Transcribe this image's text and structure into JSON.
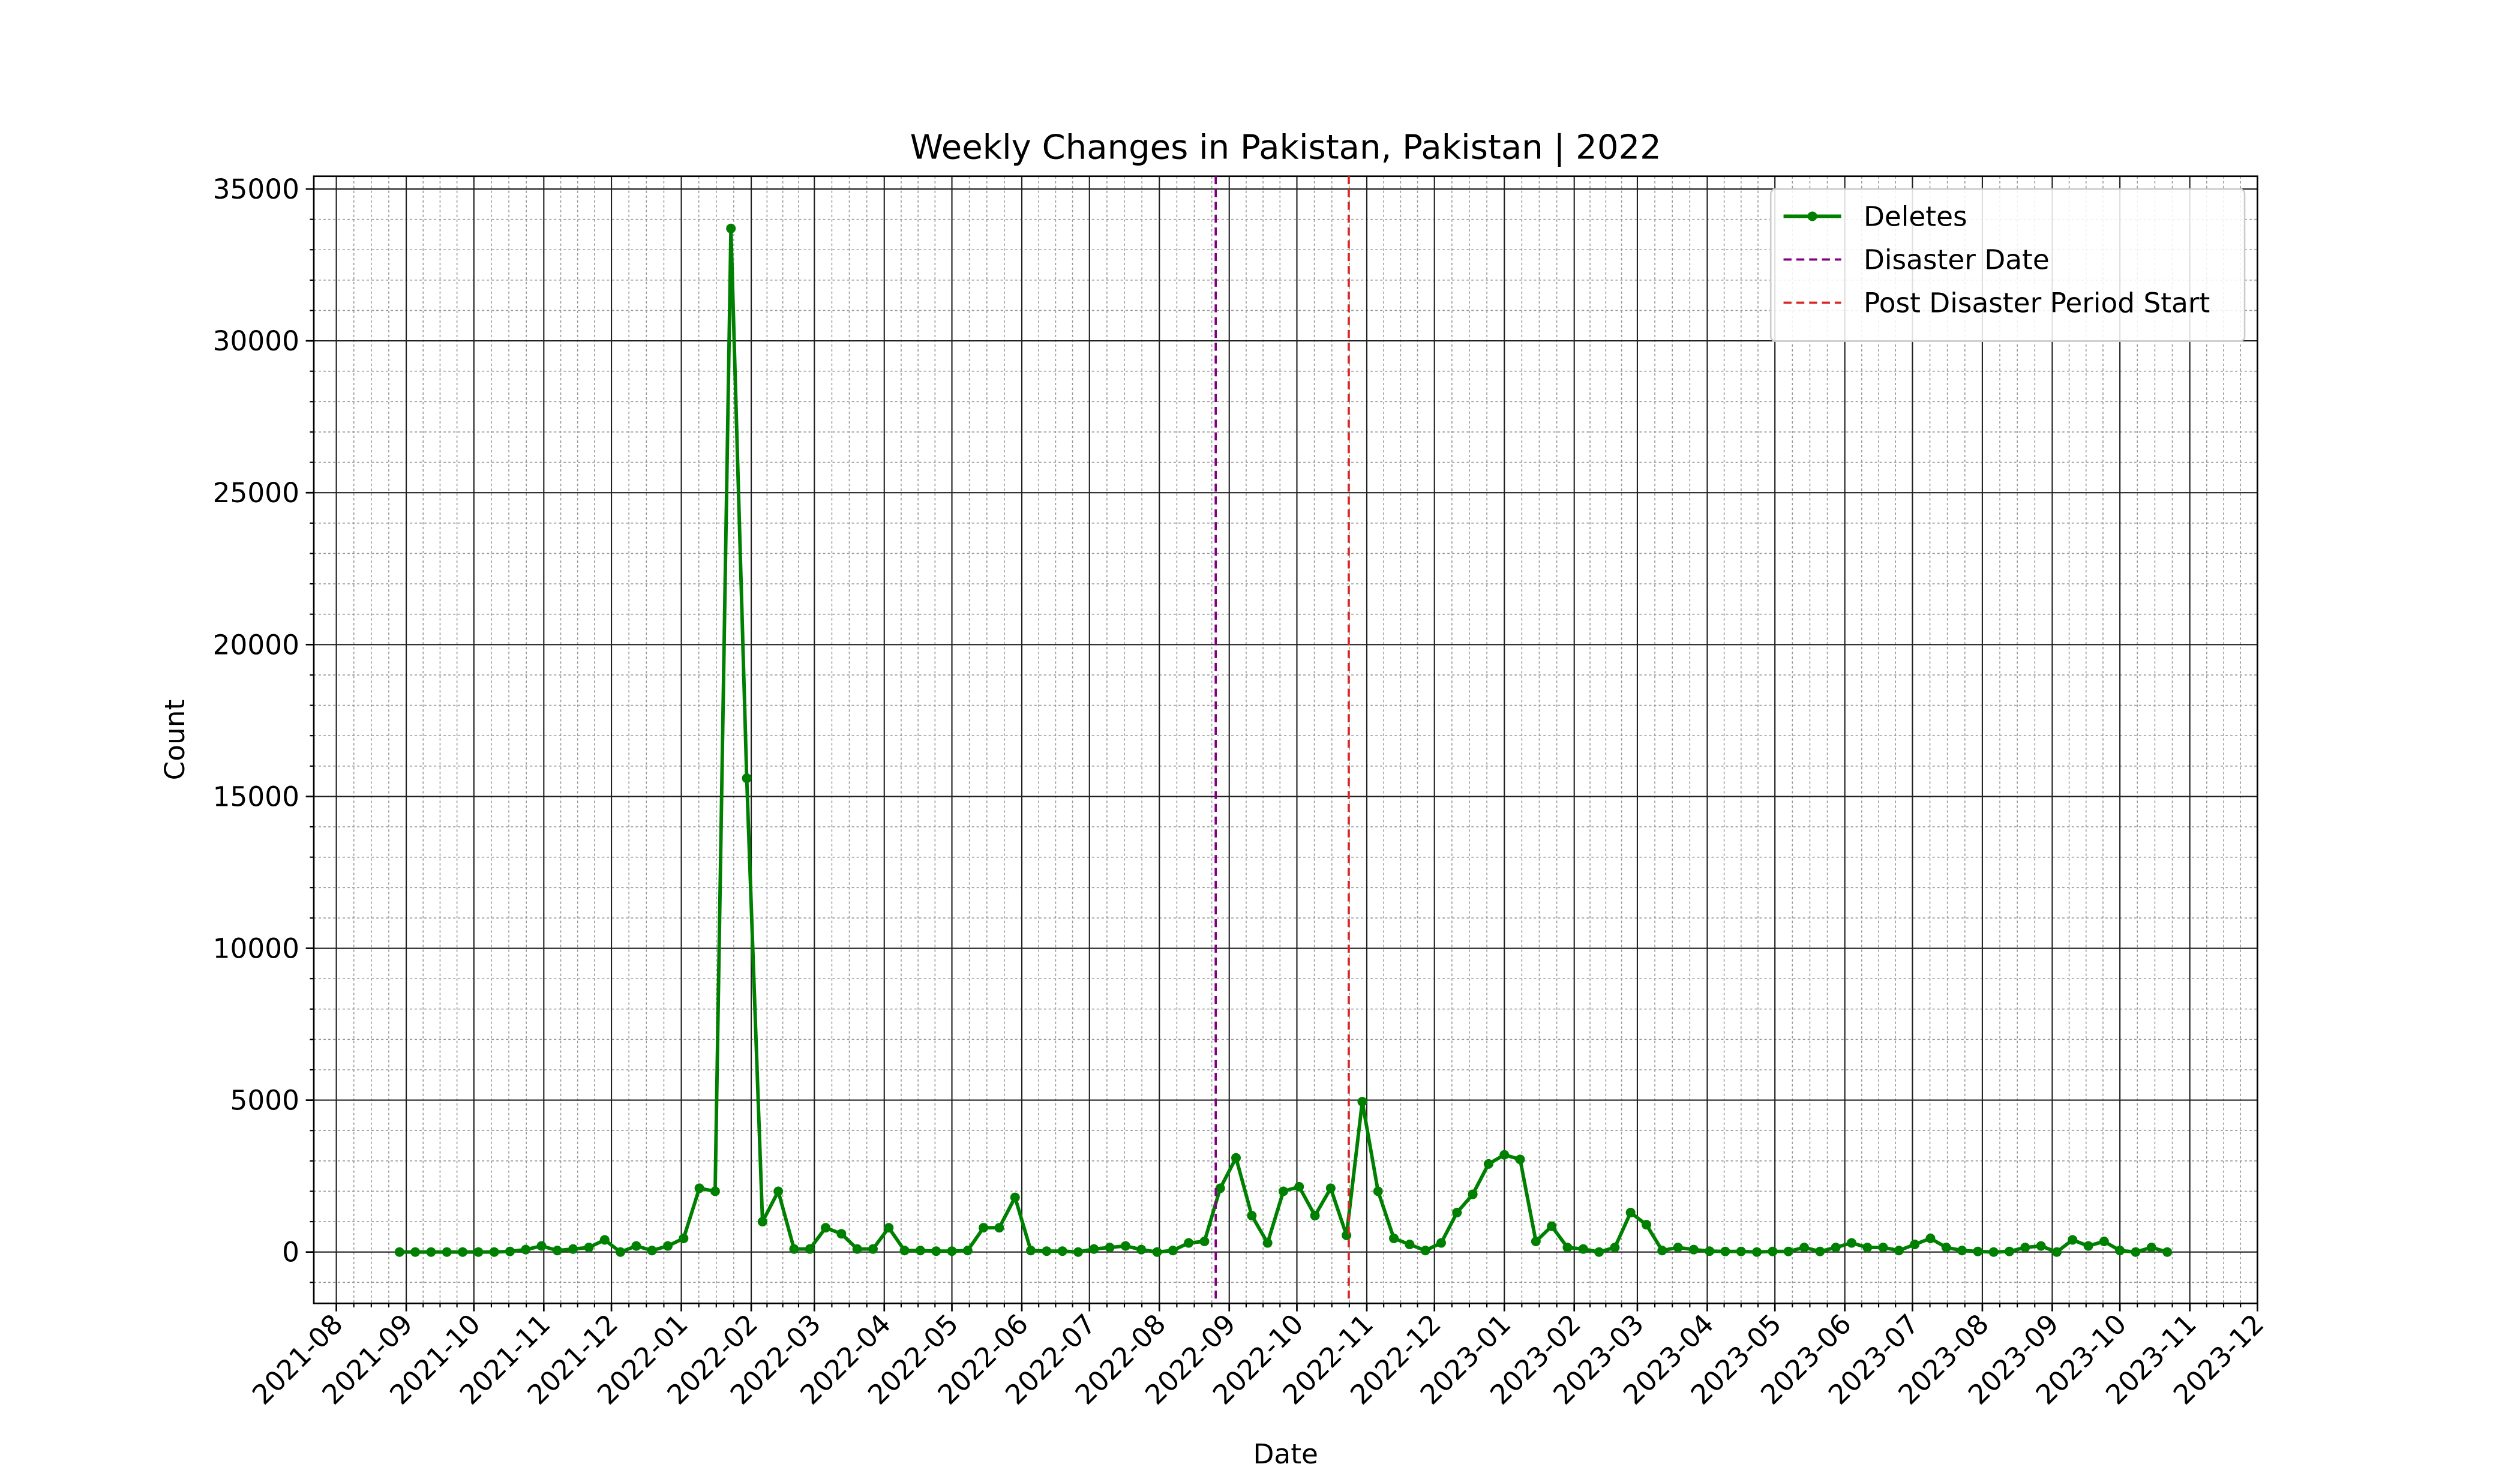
{
  "chart_data": {
    "type": "line",
    "title": "Weekly Changes in Pakistan, Pakistan | 2022",
    "x_label": "Date",
    "y_label": "Count",
    "x": [
      "2021-08-29",
      "2021-09-05",
      "2021-09-12",
      "2021-09-19",
      "2021-09-26",
      "2021-10-03",
      "2021-10-10",
      "2021-10-17",
      "2021-10-24",
      "2021-10-31",
      "2021-11-07",
      "2021-11-14",
      "2021-11-21",
      "2021-11-28",
      "2021-12-05",
      "2021-12-12",
      "2021-12-19",
      "2021-12-26",
      "2022-01-02",
      "2022-01-09",
      "2022-01-16",
      "2022-01-23",
      "2022-01-30",
      "2022-02-06",
      "2022-02-13",
      "2022-02-20",
      "2022-02-27",
      "2022-03-06",
      "2022-03-13",
      "2022-03-20",
      "2022-03-27",
      "2022-04-03",
      "2022-04-10",
      "2022-04-17",
      "2022-04-24",
      "2022-05-01",
      "2022-05-08",
      "2022-05-15",
      "2022-05-22",
      "2022-05-29",
      "2022-06-05",
      "2022-06-12",
      "2022-06-19",
      "2022-06-26",
      "2022-07-03",
      "2022-07-10",
      "2022-07-17",
      "2022-07-24",
      "2022-07-31",
      "2022-08-07",
      "2022-08-14",
      "2022-08-21",
      "2022-08-28",
      "2022-09-04",
      "2022-09-11",
      "2022-09-18",
      "2022-09-25",
      "2022-10-02",
      "2022-10-09",
      "2022-10-16",
      "2022-10-23",
      "2022-10-30",
      "2022-11-06",
      "2022-11-13",
      "2022-11-20",
      "2022-11-27",
      "2022-12-04",
      "2022-12-11",
      "2022-12-18",
      "2022-12-25",
      "2023-01-01",
      "2023-01-08",
      "2023-01-15",
      "2023-01-22",
      "2023-01-29",
      "2023-02-05",
      "2023-02-12",
      "2023-02-19",
      "2023-02-26",
      "2023-03-05",
      "2023-03-12",
      "2023-03-19",
      "2023-03-26",
      "2023-04-02",
      "2023-04-09",
      "2023-04-16",
      "2023-04-23",
      "2023-04-30",
      "2023-05-07",
      "2023-05-14",
      "2023-05-21",
      "2023-05-28",
      "2023-06-04",
      "2023-06-11",
      "2023-06-18",
      "2023-06-25",
      "2023-07-02",
      "2023-07-09",
      "2023-07-16",
      "2023-07-23",
      "2023-07-30",
      "2023-08-06",
      "2023-08-13",
      "2023-08-20",
      "2023-08-27",
      "2023-09-03",
      "2023-09-10",
      "2023-09-17",
      "2023-09-24",
      "2023-10-01",
      "2023-10-08",
      "2023-10-15",
      "2023-10-22"
    ],
    "series": [
      {
        "name": "Deletes",
        "color": "#008000",
        "values": [
          0,
          0,
          0,
          0,
          0,
          0,
          0,
          20,
          80,
          200,
          50,
          100,
          150,
          400,
          0,
          200,
          50,
          200,
          450,
          2100,
          2000,
          33700,
          15600,
          1000,
          2000,
          100,
          100,
          800,
          600,
          100,
          100,
          800,
          50,
          50,
          30,
          30,
          50,
          800,
          800,
          1800,
          50,
          30,
          30,
          0,
          100,
          150,
          200,
          80,
          0,
          50,
          300,
          350,
          2100,
          3100,
          1200,
          300,
          2000,
          2150,
          1200,
          2100,
          550,
          4950,
          2000,
          450,
          250,
          50,
          300,
          1300,
          1900,
          2900,
          3200,
          3050,
          350,
          850,
          150,
          100,
          0,
          150,
          1300,
          900,
          50,
          150,
          80,
          30,
          20,
          20,
          0,
          20,
          20,
          150,
          20,
          150,
          300,
          150,
          150,
          50,
          250,
          450,
          150,
          50,
          20,
          0,
          20,
          150,
          200,
          0,
          400,
          200,
          350,
          50,
          0,
          150,
          0
        ]
      }
    ],
    "vlines": [
      {
        "name": "Disaster Date",
        "x": "2022-08-26",
        "color": "#800080"
      },
      {
        "name": "Post Disaster Period Start",
        "x": "2022-10-24",
        "color": "#d62728"
      }
    ],
    "xlim": [
      "2021-07-22",
      "2023-12-01"
    ],
    "xticks": [
      "2021-08",
      "2021-09",
      "2021-10",
      "2021-11",
      "2021-12",
      "2022-01",
      "2022-02",
      "2022-03",
      "2022-04",
      "2022-05",
      "2022-06",
      "2022-07",
      "2022-08",
      "2022-09",
      "2022-10",
      "2022-11",
      "2022-12",
      "2023-01",
      "2023-02",
      "2023-03",
      "2023-04",
      "2023-05",
      "2023-06",
      "2023-07",
      "2023-08",
      "2023-09",
      "2023-10",
      "2023-11",
      "2023-12"
    ],
    "ylim": [
      -1690,
      35420
    ],
    "yticks": [
      0,
      5000,
      10000,
      15000,
      20000,
      25000,
      30000,
      35000
    ],
    "grid": true,
    "minor_grid": true,
    "legend": "upper right"
  }
}
